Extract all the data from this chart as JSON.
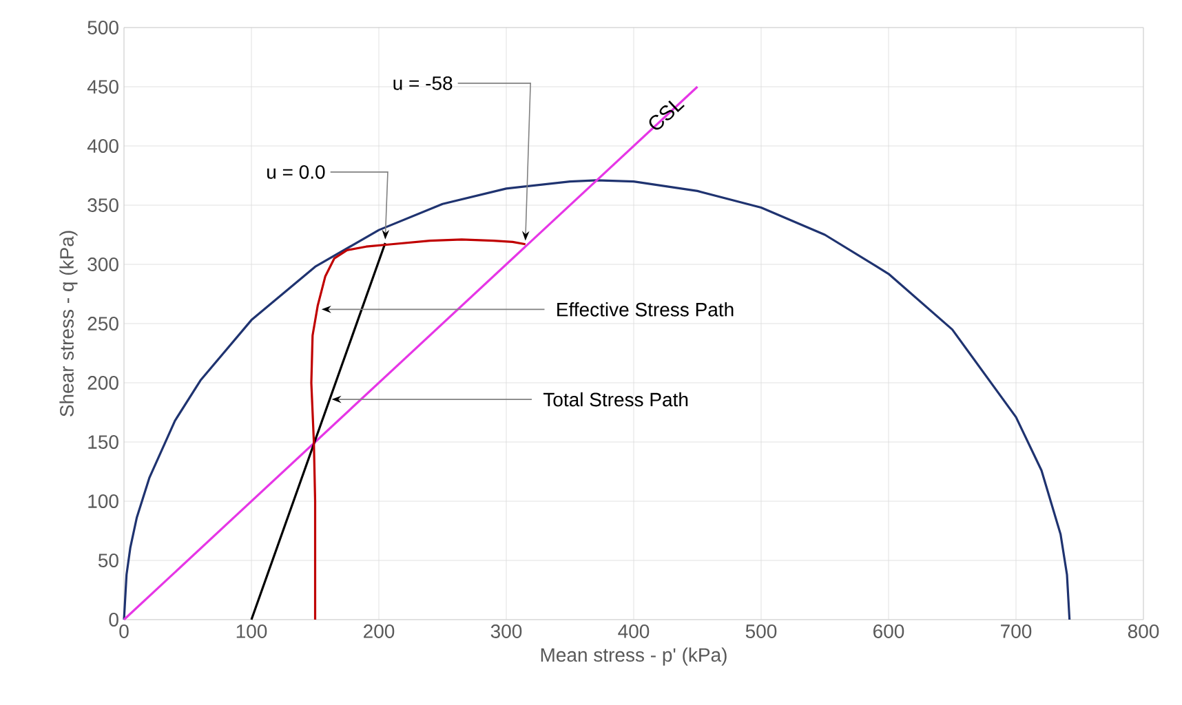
{
  "chart_data": {
    "type": "line",
    "xlabel": "Mean stress - p' (kPa)",
    "ylabel": "Shear stress - q (kPa)",
    "xlim": [
      0,
      800
    ],
    "ylim": [
      0,
      500
    ],
    "xticks": [
      0,
      100,
      200,
      300,
      400,
      500,
      600,
      700,
      800
    ],
    "yticks": [
      0,
      50,
      100,
      150,
      200,
      250,
      300,
      350,
      400,
      450,
      500
    ],
    "grid": true,
    "line_style": "solid",
    "series": [
      {
        "color": "#1f3370",
        "x": [
          0,
          2,
          5,
          10,
          20,
          40,
          60,
          100,
          150,
          200,
          250,
          300,
          350,
          371,
          400,
          450,
          500,
          550,
          600,
          650,
          700,
          720,
          735,
          740,
          742
        ],
        "values": [
          0,
          38,
          61,
          86,
          120,
          168,
          202,
          253,
          298,
          329,
          351,
          364,
          370,
          371,
          370,
          362,
          348,
          325,
          292,
          245,
          171,
          126,
          72,
          38,
          0
        ]
      },
      {
        "color": "#e636e6",
        "x": [
          0,
          450
        ],
        "values": [
          0,
          450
        ]
      },
      {
        "color": "#000000",
        "x": [
          100,
          205
        ],
        "values": [
          0,
          318
        ]
      },
      {
        "color": "#c00000",
        "x": [
          150,
          150,
          149,
          147,
          148,
          152,
          158,
          165,
          175,
          190,
          210,
          240,
          265,
          290,
          305,
          315
        ],
        "values": [
          0,
          100,
          150,
          200,
          240,
          265,
          290,
          305,
          312,
          315,
          317,
          320,
          321,
          320,
          319,
          317
        ]
      }
    ],
    "annotations": [
      {
        "text": "u = -58",
        "x": 315,
        "y": 317
      },
      {
        "text": "u = 0.0",
        "x": 205,
        "y": 318
      },
      {
        "text": "Effective Stress Path",
        "x": 155,
        "y": 262
      },
      {
        "text": "Total Stress Path",
        "x": 163,
        "y": 186
      },
      {
        "text": "CSL",
        "x": 425,
        "y": 427
      }
    ]
  }
}
